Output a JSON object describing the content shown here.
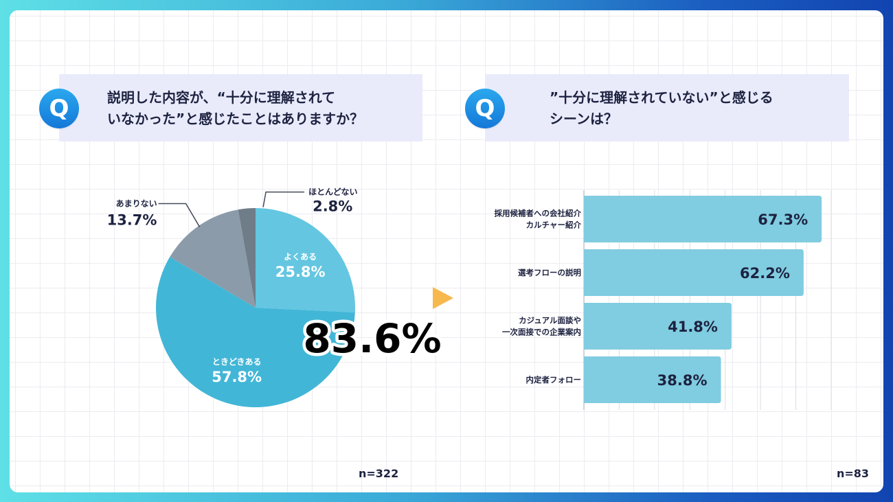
{
  "left_panel": {
    "question": "説明した内容が、“十分に理解されて\nいなかった”と感じたことはありますか？",
    "q_icon": "Q",
    "sample_size": "n=322",
    "highlight": "83.6%"
  },
  "right_panel": {
    "question": "”十分に理解されていない”と感じる\nシーンは？",
    "q_icon": "Q",
    "sample_size": "n=83"
  },
  "arrow_icon": "triangle-right-icon",
  "colors": {
    "pie_often": "#64c6e1",
    "pie_sometimes": "#42b6d7",
    "pie_rarely": "#8c9ba9",
    "pie_hardly": "#6f7d89",
    "bar": "#80cce0",
    "accent_arrow": "#f7b84e",
    "dark_text": "#1d2240"
  },
  "chart_data": [
    {
      "type": "pie",
      "slices": [
        {
          "label": "よくある",
          "value": 25.8,
          "display": "25.8%"
        },
        {
          "label": "ときどきある",
          "value": 57.8,
          "display": "57.8%"
        },
        {
          "label": "あまりない",
          "value": 13.7,
          "display": "13.7%"
        },
        {
          "label": "ほとんどない",
          "value": 2.8,
          "display": "2.8%"
        }
      ]
    },
    {
      "type": "bar",
      "orientation": "horizontal",
      "categories": [
        "採用候補者への会社紹介\nカルチャー紹介",
        "選考フローの説明",
        "カジュアル面談や\n一次面接での企業案内",
        "内定者フォロー"
      ],
      "values": [
        67.3,
        62.2,
        41.8,
        38.8
      ],
      "display": [
        "67.3%",
        "62.2%",
        "41.8%",
        "38.8%"
      ],
      "xlim": [
        0,
        70
      ]
    }
  ]
}
